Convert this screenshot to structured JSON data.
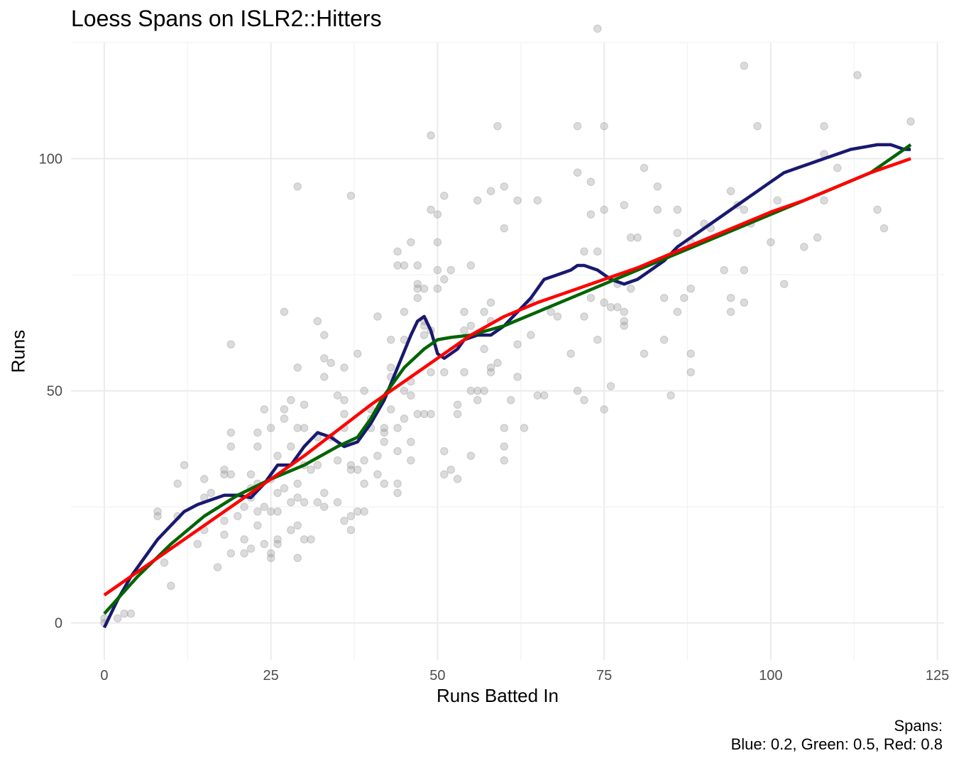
{
  "chart_data": {
    "type": "scatter",
    "title": "Loess Spans on ISLR2::Hitters",
    "xlabel": "Runs Batted In",
    "ylabel": "Runs",
    "caption": [
      "Spans:",
      "Blue: 0.2, Green: 0.5, Red: 0.8"
    ],
    "xlim": [
      -5,
      126
    ],
    "ylim": [
      -8,
      125
    ],
    "xticks": [
      0,
      25,
      50,
      75,
      100,
      125
    ],
    "yticks": [
      0,
      50,
      100
    ],
    "grid": true,
    "legend": "none",
    "points_style": {
      "color": "#999999",
      "opacity": 0.35
    },
    "points": [
      [
        0,
        0
      ],
      [
        0,
        1
      ],
      [
        2,
        1
      ],
      [
        3,
        2
      ],
      [
        4,
        2
      ],
      [
        8,
        23
      ],
      [
        8,
        24
      ],
      [
        9,
        13
      ],
      [
        10,
        8
      ],
      [
        11,
        30
      ],
      [
        11,
        23
      ],
      [
        12,
        34
      ],
      [
        14,
        17
      ],
      [
        15,
        27
      ],
      [
        15,
        31
      ],
      [
        15,
        20
      ],
      [
        16,
        28
      ],
      [
        17,
        12
      ],
      [
        18,
        33
      ],
      [
        18,
        32
      ],
      [
        18,
        22
      ],
      [
        18,
        19
      ],
      [
        19,
        32
      ],
      [
        19,
        60
      ],
      [
        19,
        41
      ],
      [
        19,
        38
      ],
      [
        19,
        15
      ],
      [
        20,
        23
      ],
      [
        21,
        18
      ],
      [
        21,
        15
      ],
      [
        21,
        25
      ],
      [
        22,
        32
      ],
      [
        22,
        29
      ],
      [
        22,
        16
      ],
      [
        22,
        27
      ],
      [
        23,
        41
      ],
      [
        23,
        38
      ],
      [
        23,
        30
      ],
      [
        23,
        24
      ],
      [
        23,
        21
      ],
      [
        24,
        46
      ],
      [
        24,
        25
      ],
      [
        24,
        17
      ],
      [
        25,
        42
      ],
      [
        25,
        31
      ],
      [
        25,
        24
      ],
      [
        25,
        15
      ],
      [
        25,
        14
      ],
      [
        26,
        36
      ],
      [
        26,
        28
      ],
      [
        26,
        24
      ],
      [
        26,
        18
      ],
      [
        26,
        17
      ],
      [
        27,
        67
      ],
      [
        27,
        46
      ],
      [
        27,
        44
      ],
      [
        27,
        29
      ],
      [
        28,
        48
      ],
      [
        28,
        38
      ],
      [
        28,
        26
      ],
      [
        28,
        20
      ],
      [
        29,
        94
      ],
      [
        29,
        55
      ],
      [
        29,
        42
      ],
      [
        29,
        30
      ],
      [
        29,
        27
      ],
      [
        29,
        21
      ],
      [
        29,
        14
      ],
      [
        30,
        47
      ],
      [
        30,
        42
      ],
      [
        30,
        34
      ],
      [
        30,
        26
      ],
      [
        30,
        18
      ],
      [
        31,
        33
      ],
      [
        31,
        18
      ],
      [
        32,
        65
      ],
      [
        32,
        40
      ],
      [
        32,
        34
      ],
      [
        32,
        26
      ],
      [
        33,
        62
      ],
      [
        33,
        57
      ],
      [
        33,
        53
      ],
      [
        33,
        28
      ],
      [
        33,
        25
      ],
      [
        34,
        56
      ],
      [
        34,
        40
      ],
      [
        35,
        49
      ],
      [
        35,
        35
      ],
      [
        35,
        26
      ],
      [
        36,
        55
      ],
      [
        36,
        48
      ],
      [
        36,
        45
      ],
      [
        36,
        42
      ],
      [
        36,
        22
      ],
      [
        37,
        92
      ],
      [
        37,
        34
      ],
      [
        37,
        33
      ],
      [
        37,
        23
      ],
      [
        37,
        20
      ],
      [
        38,
        58
      ],
      [
        38,
        33
      ],
      [
        38,
        24
      ],
      [
        39,
        50
      ],
      [
        39,
        30
      ],
      [
        39,
        35
      ],
      [
        39,
        24
      ],
      [
        40,
        46
      ],
      [
        40,
        44
      ],
      [
        40,
        42
      ],
      [
        41,
        66
      ],
      [
        41,
        36
      ],
      [
        41,
        32
      ],
      [
        42,
        42
      ],
      [
        42,
        41
      ],
      [
        42,
        39
      ],
      [
        42,
        30
      ],
      [
        43,
        61
      ],
      [
        43,
        55
      ],
      [
        43,
        53
      ],
      [
        43,
        46
      ],
      [
        44,
        80
      ],
      [
        44,
        77
      ],
      [
        44,
        42
      ],
      [
        44,
        37
      ],
      [
        44,
        30
      ],
      [
        44,
        28
      ],
      [
        45,
        77
      ],
      [
        45,
        67
      ],
      [
        45,
        61
      ],
      [
        45,
        50
      ],
      [
        45,
        44
      ],
      [
        46,
        82
      ],
      [
        46,
        52
      ],
      [
        46,
        49
      ],
      [
        46,
        39
      ],
      [
        46,
        35
      ],
      [
        47,
        77
      ],
      [
        47,
        73
      ],
      [
        47,
        72
      ],
      [
        47,
        70
      ],
      [
        47,
        45
      ],
      [
        48,
        72
      ],
      [
        48,
        65
      ],
      [
        48,
        64
      ],
      [
        48,
        62
      ],
      [
        48,
        45
      ],
      [
        49,
        105
      ],
      [
        49,
        89
      ],
      [
        49,
        63
      ],
      [
        49,
        54
      ],
      [
        49,
        45
      ],
      [
        50,
        88
      ],
      [
        50,
        82
      ],
      [
        50,
        76
      ],
      [
        50,
        72
      ],
      [
        51,
        92
      ],
      [
        51,
        74
      ],
      [
        51,
        54
      ],
      [
        51,
        37
      ],
      [
        51,
        32
      ],
      [
        52,
        76
      ],
      [
        52,
        33
      ],
      [
        53,
        47
      ],
      [
        53,
        45
      ],
      [
        53,
        31
      ],
      [
        54,
        63
      ],
      [
        54,
        67
      ],
      [
        54,
        54
      ],
      [
        55,
        77
      ],
      [
        55,
        64
      ],
      [
        55,
        50
      ],
      [
        55,
        36
      ],
      [
        56,
        91
      ],
      [
        56,
        50
      ],
      [
        56,
        48
      ],
      [
        57,
        67
      ],
      [
        57,
        59
      ],
      [
        57,
        50
      ],
      [
        58,
        93
      ],
      [
        58,
        69
      ],
      [
        58,
        65
      ],
      [
        58,
        55
      ],
      [
        58,
        54
      ],
      [
        59,
        107
      ],
      [
        59,
        56
      ],
      [
        60,
        94
      ],
      [
        60,
        85
      ],
      [
        60,
        42
      ],
      [
        60,
        38
      ],
      [
        60,
        35
      ],
      [
        61,
        48
      ],
      [
        62,
        91
      ],
      [
        62,
        60
      ],
      [
        62,
        53
      ],
      [
        63,
        42
      ],
      [
        64,
        69
      ],
      [
        64,
        62
      ],
      [
        65,
        91
      ],
      [
        65,
        49
      ],
      [
        66,
        49
      ],
      [
        67,
        67
      ],
      [
        68,
        66
      ],
      [
        70,
        58
      ],
      [
        71,
        107
      ],
      [
        71,
        97
      ],
      [
        71,
        50
      ],
      [
        72,
        80
      ],
      [
        72,
        66
      ],
      [
        72,
        48
      ],
      [
        73,
        95
      ],
      [
        73,
        88
      ],
      [
        73,
        70
      ],
      [
        74,
        128
      ],
      [
        74,
        80
      ],
      [
        74,
        61
      ],
      [
        75,
        107
      ],
      [
        75,
        89
      ],
      [
        75,
        69
      ],
      [
        75,
        46
      ],
      [
        76,
        68
      ],
      [
        76,
        51
      ],
      [
        77,
        73
      ],
      [
        77,
        68
      ],
      [
        78,
        90
      ],
      [
        78,
        67
      ],
      [
        78,
        65
      ],
      [
        78,
        64
      ],
      [
        79,
        83
      ],
      [
        79,
        72
      ],
      [
        80,
        83
      ],
      [
        81,
        98
      ],
      [
        81,
        58
      ],
      [
        83,
        94
      ],
      [
        83,
        89
      ],
      [
        84,
        70
      ],
      [
        84,
        61
      ],
      [
        85,
        49
      ],
      [
        86,
        89
      ],
      [
        86,
        84
      ],
      [
        86,
        67
      ],
      [
        87,
        70
      ],
      [
        88,
        82
      ],
      [
        88,
        72
      ],
      [
        88,
        58
      ],
      [
        88,
        54
      ],
      [
        90,
        86
      ],
      [
        91,
        85
      ],
      [
        93,
        76
      ],
      [
        94,
        93
      ],
      [
        94,
        70
      ],
      [
        94,
        67
      ],
      [
        95,
        90
      ],
      [
        96,
        120
      ],
      [
        96,
        89
      ],
      [
        96,
        76
      ],
      [
        96,
        69
      ],
      [
        97,
        86
      ],
      [
        98,
        107
      ],
      [
        100,
        82
      ],
      [
        101,
        91
      ],
      [
        102,
        73
      ],
      [
        105,
        81
      ],
      [
        107,
        83
      ],
      [
        108,
        107
      ],
      [
        108,
        101
      ],
      [
        108,
        91
      ],
      [
        110,
        98
      ],
      [
        113,
        118
      ],
      [
        116,
        89
      ],
      [
        117,
        85
      ],
      [
        121,
        108
      ]
    ],
    "series": [
      {
        "name": "Blue",
        "span": 0.2,
        "color": "#191970",
        "x": [
          0,
          2,
          4,
          6,
          8,
          10,
          12,
          14,
          16,
          18,
          20,
          22,
          24,
          26,
          28,
          30,
          32,
          34,
          36,
          38,
          40,
          42,
          44,
          46,
          47,
          48,
          49,
          50,
          51,
          52,
          53,
          54,
          56,
          58,
          60,
          62,
          64,
          66,
          68,
          70,
          71,
          72,
          74,
          76,
          78,
          80,
          82,
          84,
          86,
          88,
          90,
          92,
          94,
          96,
          98,
          100,
          102,
          104,
          106,
          108,
          110,
          112,
          114,
          116,
          118,
          120,
          121
        ],
        "y": [
          -1,
          5,
          10,
          14,
          18,
          21,
          24,
          25.5,
          26.5,
          27.5,
          27.5,
          27,
          30,
          34,
          34,
          38,
          41,
          40,
          38,
          39,
          43,
          48,
          55,
          62,
          65,
          66,
          63,
          58,
          57,
          58,
          59,
          61,
          62,
          62,
          64,
          67,
          70,
          74,
          75,
          76,
          77,
          77,
          76,
          74,
          73,
          74,
          76,
          78,
          81,
          83,
          85,
          87,
          89,
          91,
          93,
          95,
          97,
          98,
          99,
          100,
          101,
          102,
          102.5,
          103,
          103,
          102,
          102
        ]
      },
      {
        "name": "Green",
        "span": 0.5,
        "color": "#006400",
        "x": [
          0,
          5,
          10,
          15,
          20,
          25,
          30,
          35,
          38,
          40,
          42,
          45,
          48,
          50,
          52,
          55,
          60,
          65,
          70,
          75,
          80,
          85,
          90,
          95,
          100,
          105,
          110,
          115,
          121
        ],
        "y": [
          2,
          10,
          17,
          23,
          27.5,
          31,
          34,
          38,
          40,
          44,
          49,
          55,
          59,
          61,
          61.5,
          62,
          64,
          67,
          70,
          73,
          76,
          79,
          82,
          85,
          88,
          91,
          94,
          97,
          103
        ]
      },
      {
        "name": "Red",
        "span": 0.8,
        "color": "#ff0000",
        "x": [
          0,
          10,
          20,
          30,
          40,
          45,
          50,
          55,
          60,
          65,
          70,
          75,
          80,
          85,
          90,
          95,
          100,
          105,
          110,
          115,
          121
        ],
        "y": [
          6,
          16,
          26,
          36,
          47,
          52,
          57,
          62,
          66,
          69,
          71.5,
          74,
          76.5,
          79.5,
          82.5,
          85.5,
          88.5,
          91,
          94,
          97,
          100
        ]
      }
    ]
  }
}
